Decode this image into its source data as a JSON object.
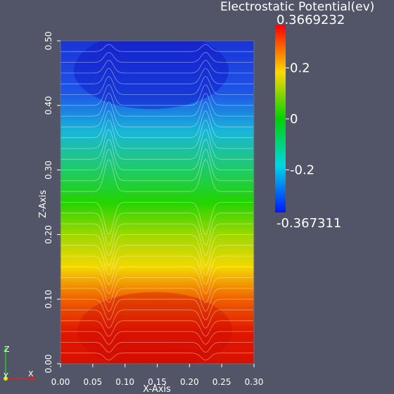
{
  "chart_data": {
    "type": "heatmap",
    "title": "Electrostatic Potential(ev)",
    "xlabel": "X-Axis",
    "ylabel": "Z-Axis",
    "xlim": [
      0.0,
      0.3
    ],
    "ylim": [
      0.0,
      0.5
    ],
    "x_ticks": [
      "0.00",
      "0.05",
      "0.10",
      "0.15",
      "0.20",
      "0.25",
      "0.30"
    ],
    "y_ticks": [
      "0.00",
      "0.10",
      "0.20",
      "0.30",
      "0.40",
      "0.50"
    ],
    "colorbar": {
      "max_label": "0.3669232",
      "min_label": "-0.367311",
      "max": 0.3669232,
      "min": -0.367311,
      "ticks": [
        {
          "value": 0.2,
          "label": "0.2"
        },
        {
          "value": 0.0,
          "label": "0"
        },
        {
          "value": -0.2,
          "label": "-0.2"
        }
      ],
      "colormap": "blue-cyan-green-yellow-red"
    },
    "field_profile_along_z": [
      {
        "z": 0.0,
        "potential": 0.33
      },
      {
        "z": 0.1,
        "potential": 0.27
      },
      {
        "z": 0.2,
        "potential": 0.13
      },
      {
        "z": 0.25,
        "potential": 0.01
      },
      {
        "z": 0.3,
        "potential": -0.06
      },
      {
        "z": 0.4,
        "potential": -0.26
      },
      {
        "z": 0.5,
        "potential": -0.36
      }
    ],
    "features": [
      {
        "x": 0.075,
        "kind": "vertical perturbation"
      },
      {
        "x": 0.225,
        "kind": "vertical perturbation"
      }
    ],
    "contour_lines": "white iso-lines",
    "grid": false
  },
  "orientation_axes": {
    "z_label": "Z",
    "y_label": "Y",
    "x_label": "X",
    "colors": {
      "z": "#28c828",
      "y": "#e6e600",
      "x": "#e02020"
    }
  },
  "colors": {
    "background": "#525567",
    "text": "#ffffff"
  }
}
